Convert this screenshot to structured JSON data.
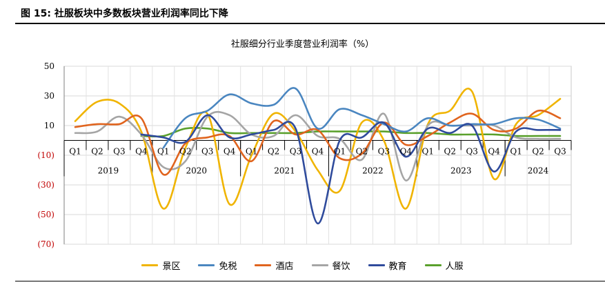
{
  "header": {
    "figure_title": "图 15:  社服板块中多数板块营业利润率同比下降"
  },
  "chart_data": {
    "type": "line",
    "title": "社服细分行业季度营业利润率（%）",
    "xlabel": "",
    "ylabel": "",
    "ylim": [
      -70,
      50
    ],
    "y_ticks": [
      50,
      30,
      10,
      -10,
      -30,
      -50,
      -70
    ],
    "y_tick_labels": [
      "50",
      "30",
      "10",
      "(10)",
      "(30)",
      "(50)",
      "(70)"
    ],
    "grid": true,
    "legend_position": "bottom",
    "categories": [
      "Q1",
      "Q2",
      "Q3",
      "Q4",
      "Q1",
      "Q2",
      "Q3",
      "Q4",
      "Q1",
      "Q2",
      "Q3",
      "Q4",
      "Q1",
      "Q2",
      "Q3",
      "Q4",
      "Q1",
      "Q2",
      "Q3",
      "Q4",
      "Q1",
      "Q2",
      "Q3"
    ],
    "years": [
      {
        "label": "2019",
        "quarters": 4
      },
      {
        "label": "2020",
        "quarters": 4
      },
      {
        "label": "2021",
        "quarters": 4
      },
      {
        "label": "2022",
        "quarters": 4
      },
      {
        "label": "2023",
        "quarters": 4
      },
      {
        "label": "2024",
        "quarters": 3
      }
    ],
    "series": [
      {
        "name": "景区",
        "color": "#F0B400",
        "values": [
          13,
          26,
          25,
          6,
          -46,
          -5,
          18,
          -43,
          -10,
          18,
          6,
          -20,
          -34,
          12,
          0,
          -46,
          11,
          20,
          33,
          -26,
          11,
          17,
          28
        ]
      },
      {
        "name": "免税",
        "color": "#4A86C0",
        "values": [
          null,
          null,
          null,
          null,
          -5,
          15,
          20,
          31,
          25,
          24,
          35,
          8,
          21,
          17,
          11,
          6,
          15,
          10,
          11,
          11,
          15,
          14,
          8
        ]
      },
      {
        "name": "酒店",
        "color": "#E0641E",
        "values": [
          9,
          11,
          11,
          15,
          -23,
          -2,
          2,
          3,
          -14,
          13,
          4,
          7,
          -12,
          -9,
          12,
          -3,
          3,
          12,
          18,
          7,
          8,
          20,
          15
        ]
      },
      {
        "name": "餐饮",
        "color": "#A5A5A5",
        "values": [
          5,
          6,
          16,
          4,
          -18,
          -14,
          16,
          17,
          4,
          3,
          17,
          3,
          1,
          -13,
          18,
          -27,
          10,
          10,
          10,
          10,
          2,
          1,
          1
        ]
      },
      {
        "name": "教育",
        "color": "#2F4B9C",
        "values": [
          null,
          null,
          null,
          4,
          2,
          -1,
          17,
          2,
          4,
          7,
          8,
          -56,
          0,
          2,
          12,
          -11,
          8,
          5,
          10,
          -21,
          6,
          7,
          7
        ]
      },
      {
        "name": "人服",
        "color": "#5AA02C",
        "values": [
          null,
          null,
          null,
          3,
          3,
          8,
          8,
          5,
          5,
          5,
          5,
          6,
          6,
          6,
          6,
          5,
          5,
          4,
          4,
          4,
          3,
          3,
          3
        ]
      }
    ]
  }
}
